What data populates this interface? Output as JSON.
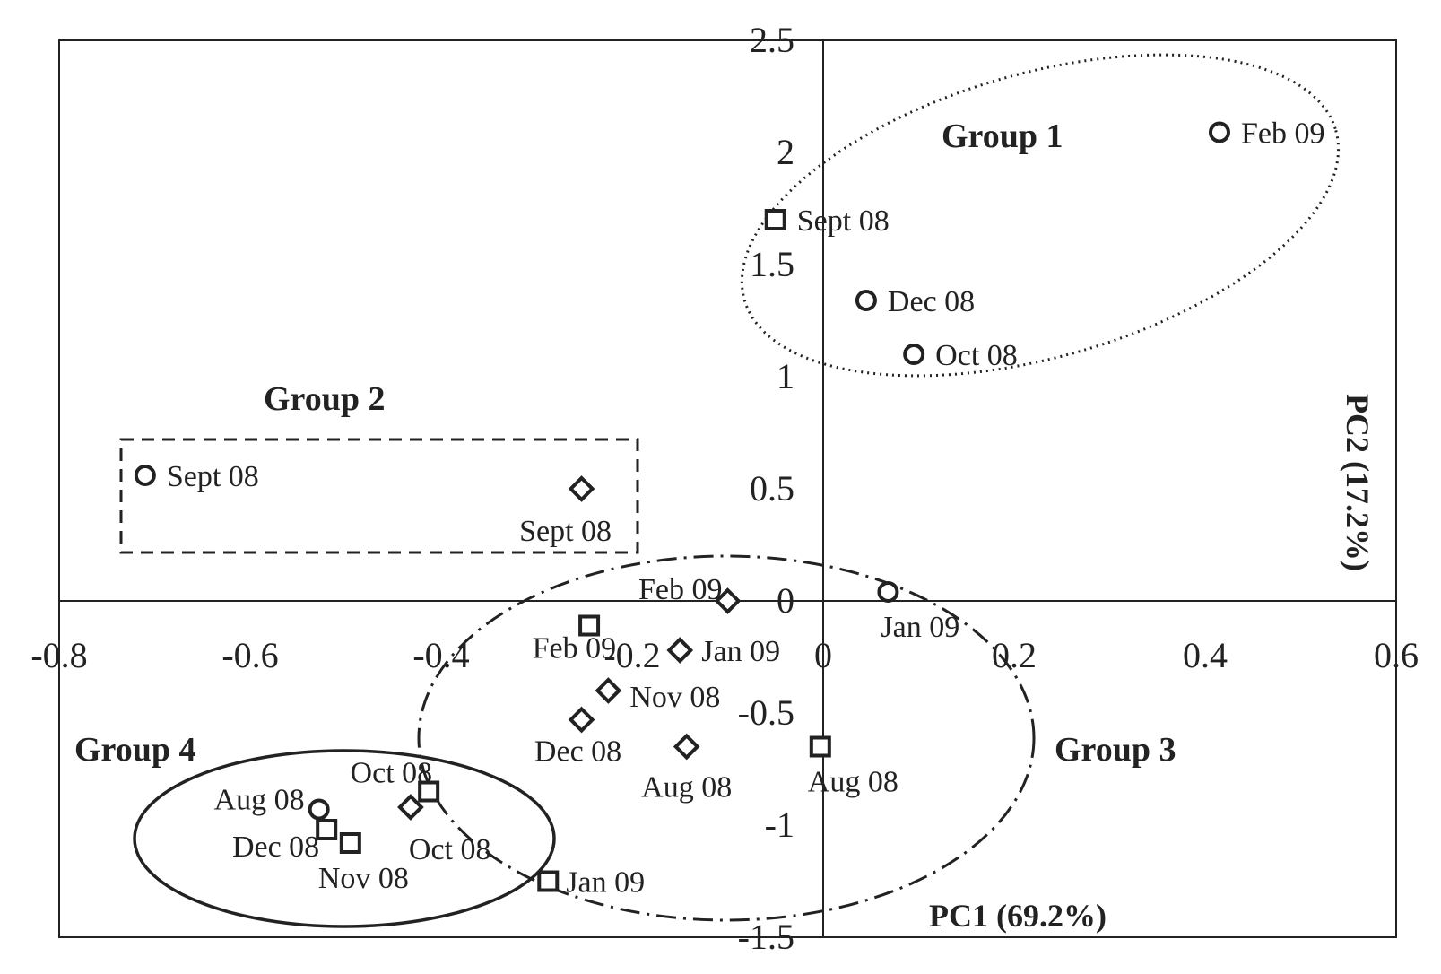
{
  "chart_data": {
    "type": "scatter",
    "title": "",
    "xlabel": "PC1 (69.2%)",
    "ylabel": "PC2 (17.2%)",
    "xlim": [
      -0.8,
      0.6
    ],
    "ylim": [
      -1.5,
      2.5
    ],
    "x_ticks": [
      "-0.8",
      "-0.6",
      "-0.4",
      "-0.2",
      "0",
      "0.2",
      "0.4",
      "0.6"
    ],
    "y_ticks": [
      "-1.5",
      "-1",
      "-0.5",
      "0",
      "0.5",
      "1",
      "1.5",
      "2",
      "2.5"
    ],
    "grid": false,
    "legend": "none",
    "series": [
      {
        "marker": "circle",
        "points": [
          {
            "label": "Feb 09",
            "x": 0.415,
            "y": 2.09
          },
          {
            "label": "Dec 08",
            "x": 0.045,
            "y": 1.34
          },
          {
            "label": "Oct 08",
            "x": 0.095,
            "y": 1.1
          },
          {
            "label": "Sept 08",
            "x": -0.71,
            "y": 0.56
          },
          {
            "label": "Jan 09",
            "x": 0.068,
            "y": 0.04
          },
          {
            "label": "Aug 08",
            "x": -0.528,
            "y": -0.93
          }
        ]
      },
      {
        "marker": "square",
        "points": [
          {
            "label": "Sept 08",
            "x": -0.05,
            "y": 1.7
          },
          {
            "label": "Feb 09",
            "x": -0.245,
            "y": -0.11
          },
          {
            "label": "Aug 08",
            "x": -0.003,
            "y": -0.65
          },
          {
            "label": "Oct 08",
            "x": -0.413,
            "y": -0.85
          },
          {
            "label": "Dec 08",
            "x": -0.52,
            "y": -1.02
          },
          {
            "label": "Nov 08",
            "x": -0.495,
            "y": -1.08
          },
          {
            "label": "Jan 09",
            "x": -0.288,
            "y": -1.25
          }
        ]
      },
      {
        "marker": "diamond",
        "points": [
          {
            "label": "Sept 08",
            "x": -0.253,
            "y": 0.5
          },
          {
            "label": "Feb 09",
            "x": -0.1,
            "y": 0.0
          },
          {
            "label": "Jan 09",
            "x": -0.15,
            "y": -0.22
          },
          {
            "label": "Nov 08",
            "x": -0.225,
            "y": -0.4
          },
          {
            "label": "Dec 08",
            "x": -0.253,
            "y": -0.53
          },
          {
            "label": "Aug 08",
            "x": -0.143,
            "y": -0.65
          },
          {
            "label": "Oct 08",
            "x": -0.432,
            "y": -0.92
          }
        ]
      }
    ],
    "groups": [
      {
        "label": "Group 1",
        "shape": "dotted-ellipse"
      },
      {
        "label": "Group 2",
        "shape": "dashed-rectangle"
      },
      {
        "label": "Group 3",
        "shape": "dash-dot-ellipse"
      },
      {
        "label": "Group 4",
        "shape": "solid-ellipse"
      }
    ]
  }
}
